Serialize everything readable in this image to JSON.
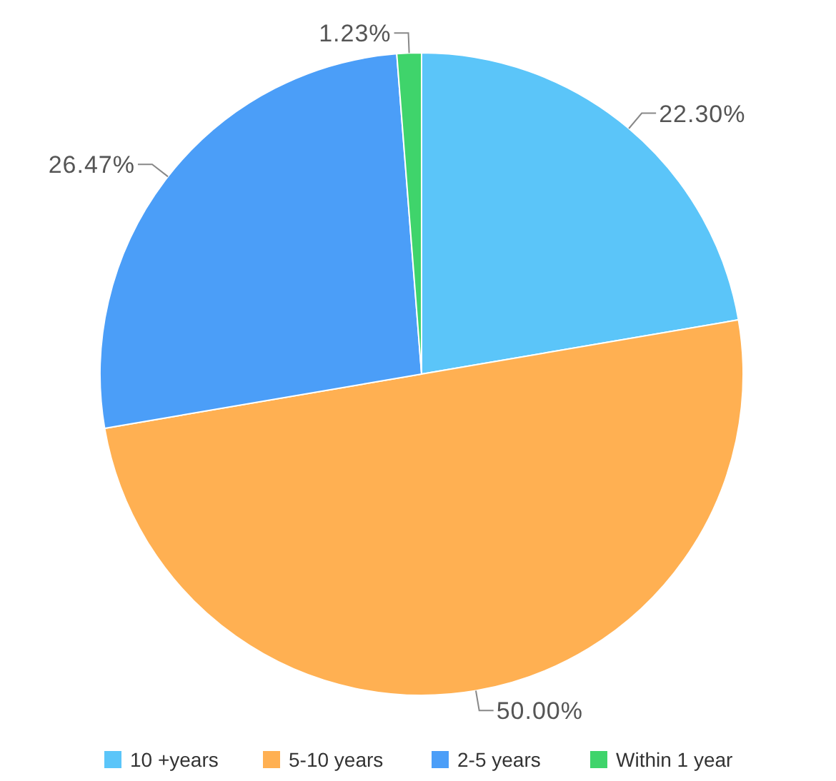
{
  "chart_data": {
    "type": "pie",
    "categories": [
      "10 +years",
      "5-10 years",
      "2-5 years",
      "Within 1 year"
    ],
    "values": [
      22.3,
      50,
      26.47,
      1.23
    ],
    "colors": [
      "#5bc5f9",
      "#ffb052",
      "#4b9ef8",
      "#3fd46b"
    ],
    "value_labels": [
      "22.30%",
      "50.00%",
      "26.47%",
      "1.23%"
    ],
    "legend": "bottom"
  }
}
